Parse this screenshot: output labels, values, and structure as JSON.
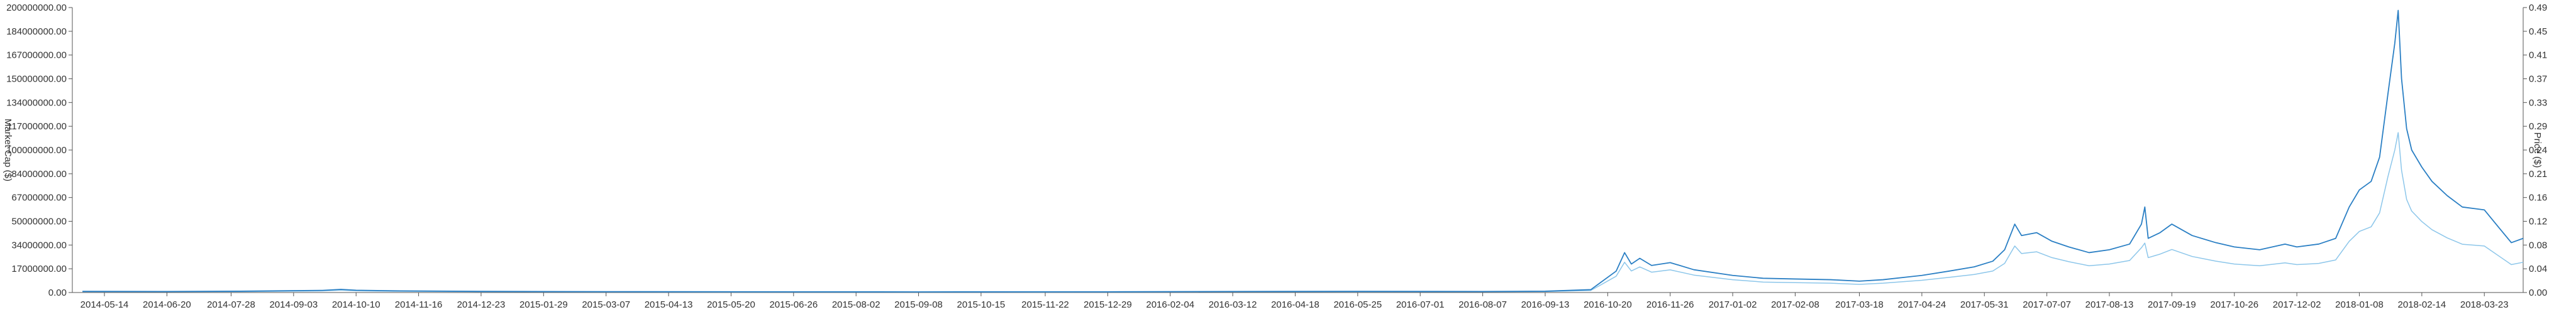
{
  "chart_data": {
    "type": "line",
    "title": "",
    "y_left_label": "Market Cap ($)",
    "y_right_label": "Price ($)",
    "y_left_ticks": [
      "0.00",
      "17000000.00",
      "34000000.00",
      "50000000.00",
      "67000000.00",
      "84000000.00",
      "100000000.00",
      "117000000.00",
      "134000000.00",
      "150000000.00",
      "167000000.00",
      "184000000.00",
      "200000000.00"
    ],
    "y_right_ticks": [
      "0.00",
      "0.04",
      "0.08",
      "0.12",
      "0.16",
      "0.21",
      "0.24",
      "0.29",
      "0.33",
      "0.37",
      "0.41",
      "0.45",
      "0.49"
    ],
    "x_ticks": [
      "2014-05-14",
      "2014-06-20",
      "2014-07-28",
      "2014-09-03",
      "2014-10-10",
      "2014-11-16",
      "2014-12-23",
      "2015-01-29",
      "2015-03-07",
      "2015-04-13",
      "2015-05-20",
      "2015-06-26",
      "2015-08-02",
      "2015-09-08",
      "2015-10-15",
      "2015-11-22",
      "2015-12-29",
      "2016-02-04",
      "2016-03-12",
      "2016-04-18",
      "2016-05-25",
      "2016-07-01",
      "2016-08-07",
      "2016-09-13",
      "2016-10-20",
      "2016-11-26",
      "2017-01-02",
      "2017-02-08",
      "2017-03-18",
      "2017-04-24",
      "2017-05-31",
      "2017-07-07",
      "2017-08-13",
      "2017-09-19",
      "2017-10-26",
      "2017-12-02",
      "2018-01-08",
      "2018-02-14",
      "2018-03-23"
    ],
    "x_range": [
      "2014-04-25",
      "2018-04-15"
    ],
    "y_left_range": [
      0,
      200000000
    ],
    "y_right_range": [
      0,
      0.49
    ],
    "grid": false,
    "legend": "none",
    "colors": {
      "market_cap": "#2a7fc4",
      "price": "#8cc6ea",
      "axis": "#555555"
    },
    "series": [
      {
        "axis": "left",
        "points": [
          [
            "2014-05-01",
            800000
          ],
          [
            "2014-06-20",
            700000
          ],
          [
            "2014-08-01",
            900000
          ],
          [
            "2014-09-20",
            1500000
          ],
          [
            "2014-10-01",
            2200000
          ],
          [
            "2014-10-10",
            1600000
          ],
          [
            "2014-11-01",
            1200000
          ],
          [
            "2014-12-23",
            800000
          ],
          [
            "2015-03-07",
            600000
          ],
          [
            "2015-06-26",
            500000
          ],
          [
            "2015-09-08",
            450000
          ],
          [
            "2015-12-29",
            500000
          ],
          [
            "2016-03-12",
            700000
          ],
          [
            "2016-05-25",
            800000
          ],
          [
            "2016-08-07",
            700000
          ],
          [
            "2016-09-13",
            900000
          ],
          [
            "2016-10-10",
            2000000
          ],
          [
            "2016-10-25",
            15000000
          ],
          [
            "2016-10-30",
            28000000
          ],
          [
            "2016-11-03",
            20000000
          ],
          [
            "2016-11-08",
            24000000
          ],
          [
            "2016-11-15",
            19000000
          ],
          [
            "2016-11-26",
            21000000
          ],
          [
            "2016-12-10",
            16000000
          ],
          [
            "2017-01-02",
            12000000
          ],
          [
            "2017-01-20",
            10000000
          ],
          [
            "2017-02-08",
            9500000
          ],
          [
            "2017-03-01",
            9000000
          ],
          [
            "2017-03-18",
            8000000
          ],
          [
            "2017-04-01",
            9000000
          ],
          [
            "2017-04-24",
            12000000
          ],
          [
            "2017-05-10",
            15000000
          ],
          [
            "2017-05-25",
            18000000
          ],
          [
            "2017-06-05",
            22000000
          ],
          [
            "2017-06-12",
            30000000
          ],
          [
            "2017-06-18",
            48000000
          ],
          [
            "2017-06-22",
            40000000
          ],
          [
            "2017-07-01",
            42000000
          ],
          [
            "2017-07-10",
            36000000
          ],
          [
            "2017-07-20",
            32000000
          ],
          [
            "2017-08-01",
            28000000
          ],
          [
            "2017-08-13",
            30000000
          ],
          [
            "2017-08-25",
            34000000
          ],
          [
            "2017-09-01",
            48000000
          ],
          [
            "2017-09-03",
            60000000
          ],
          [
            "2017-09-05",
            38000000
          ],
          [
            "2017-09-12",
            42000000
          ],
          [
            "2017-09-19",
            48000000
          ],
          [
            "2017-10-01",
            40000000
          ],
          [
            "2017-10-15",
            35000000
          ],
          [
            "2017-10-26",
            32000000
          ],
          [
            "2017-11-10",
            30000000
          ],
          [
            "2017-11-25",
            34000000
          ],
          [
            "2017-12-02",
            32000000
          ],
          [
            "2017-12-15",
            34000000
          ],
          [
            "2017-12-25",
            38000000
          ],
          [
            "2018-01-02",
            60000000
          ],
          [
            "2018-01-08",
            72000000
          ],
          [
            "2018-01-15",
            78000000
          ],
          [
            "2018-01-20",
            95000000
          ],
          [
            "2018-01-25",
            140000000
          ],
          [
            "2018-01-29",
            175000000
          ],
          [
            "2018-01-31",
            198000000
          ],
          [
            "2018-02-02",
            150000000
          ],
          [
            "2018-02-05",
            115000000
          ],
          [
            "2018-02-08",
            100000000
          ],
          [
            "2018-02-14",
            88000000
          ],
          [
            "2018-02-20",
            78000000
          ],
          [
            "2018-03-01",
            68000000
          ],
          [
            "2018-03-10",
            60000000
          ],
          [
            "2018-03-23",
            58000000
          ],
          [
            "2018-04-01",
            45000000
          ],
          [
            "2018-04-08",
            35000000
          ],
          [
            "2018-04-15",
            38000000
          ]
        ]
      },
      {
        "axis": "right",
        "points": [
          [
            "2014-05-01",
            0.0015
          ],
          [
            "2014-06-20",
            0.0013
          ],
          [
            "2014-08-01",
            0.0016
          ],
          [
            "2014-09-20",
            0.0028
          ],
          [
            "2014-10-01",
            0.004
          ],
          [
            "2014-10-10",
            0.003
          ],
          [
            "2014-11-01",
            0.0022
          ],
          [
            "2014-12-23",
            0.0015
          ],
          [
            "2015-03-07",
            0.0011
          ],
          [
            "2015-06-26",
            0.0009
          ],
          [
            "2015-09-08",
            0.0008
          ],
          [
            "2015-12-29",
            0.0009
          ],
          [
            "2016-03-12",
            0.0013
          ],
          [
            "2016-05-25",
            0.0015
          ],
          [
            "2016-08-07",
            0.0013
          ],
          [
            "2016-09-13",
            0.0017
          ],
          [
            "2016-10-10",
            0.0035
          ],
          [
            "2016-10-25",
            0.028
          ],
          [
            "2016-10-30",
            0.052
          ],
          [
            "2016-11-03",
            0.037
          ],
          [
            "2016-11-08",
            0.044
          ],
          [
            "2016-11-15",
            0.035
          ],
          [
            "2016-11-26",
            0.039
          ],
          [
            "2016-12-10",
            0.03
          ],
          [
            "2017-01-02",
            0.022
          ],
          [
            "2017-01-20",
            0.018
          ],
          [
            "2017-02-08",
            0.017
          ],
          [
            "2017-03-01",
            0.016
          ],
          [
            "2017-03-18",
            0.014
          ],
          [
            "2017-04-01",
            0.016
          ],
          [
            "2017-04-24",
            0.021
          ],
          [
            "2017-05-10",
            0.026
          ],
          [
            "2017-05-25",
            0.031
          ],
          [
            "2017-06-05",
            0.037
          ],
          [
            "2017-06-12",
            0.05
          ],
          [
            "2017-06-18",
            0.08
          ],
          [
            "2017-06-22",
            0.067
          ],
          [
            "2017-07-01",
            0.07
          ],
          [
            "2017-07-10",
            0.06
          ],
          [
            "2017-07-20",
            0.053
          ],
          [
            "2017-08-01",
            0.046
          ],
          [
            "2017-08-13",
            0.049
          ],
          [
            "2017-08-25",
            0.055
          ],
          [
            "2017-09-01",
            0.077
          ],
          [
            "2017-09-03",
            0.085
          ],
          [
            "2017-09-05",
            0.06
          ],
          [
            "2017-09-12",
            0.066
          ],
          [
            "2017-09-19",
            0.074
          ],
          [
            "2017-10-01",
            0.062
          ],
          [
            "2017-10-15",
            0.054
          ],
          [
            "2017-10-26",
            0.049
          ],
          [
            "2017-11-10",
            0.046
          ],
          [
            "2017-11-25",
            0.051
          ],
          [
            "2017-12-02",
            0.048
          ],
          [
            "2017-12-15",
            0.05
          ],
          [
            "2017-12-25",
            0.056
          ],
          [
            "2018-01-02",
            0.088
          ],
          [
            "2018-01-08",
            0.105
          ],
          [
            "2018-01-15",
            0.113
          ],
          [
            "2018-01-20",
            0.137
          ],
          [
            "2018-01-25",
            0.2
          ],
          [
            "2018-01-29",
            0.245
          ],
          [
            "2018-01-31",
            0.275
          ],
          [
            "2018-02-02",
            0.21
          ],
          [
            "2018-02-05",
            0.16
          ],
          [
            "2018-02-08",
            0.14
          ],
          [
            "2018-02-14",
            0.122
          ],
          [
            "2018-02-20",
            0.108
          ],
          [
            "2018-03-01",
            0.094
          ],
          [
            "2018-03-10",
            0.083
          ],
          [
            "2018-03-23",
            0.08
          ],
          [
            "2018-04-01",
            0.062
          ],
          [
            "2018-04-08",
            0.048
          ],
          [
            "2018-04-15",
            0.052
          ]
        ]
      }
    ]
  }
}
